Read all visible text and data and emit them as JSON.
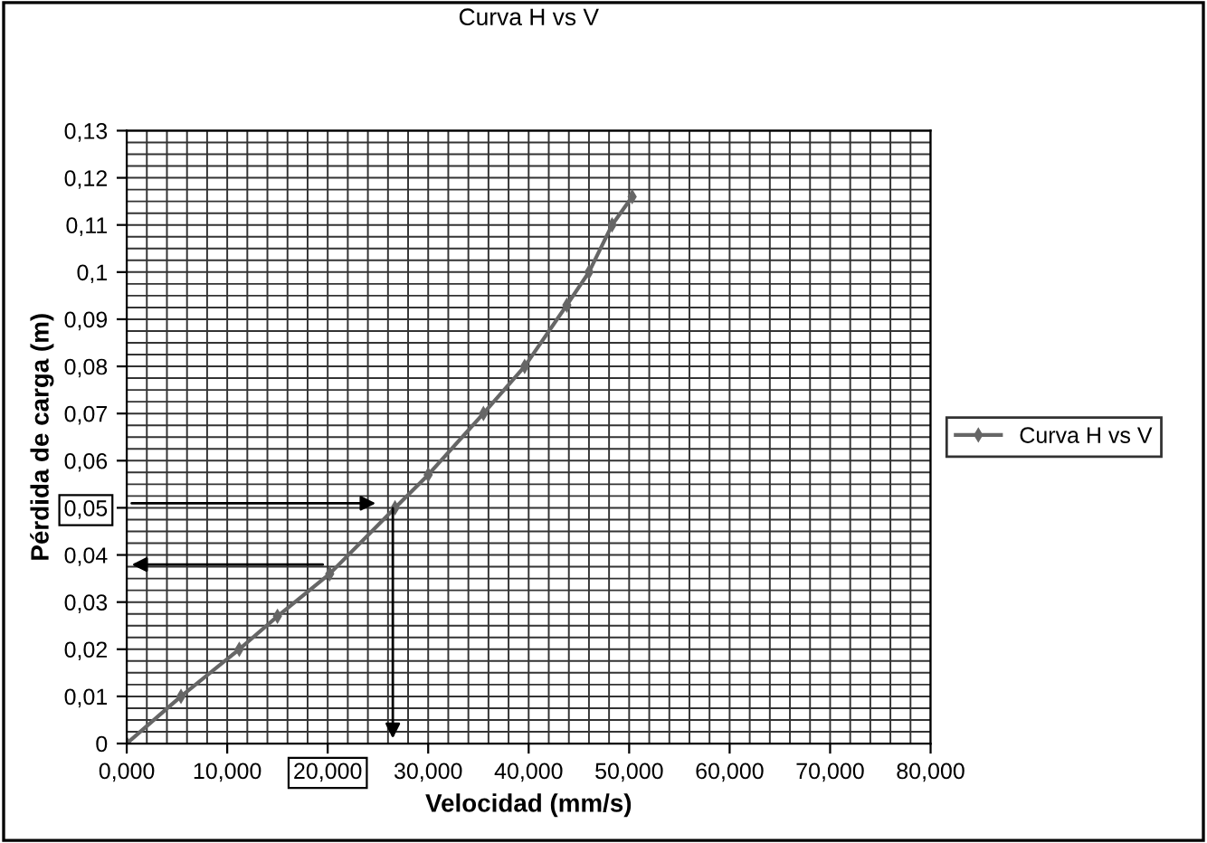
{
  "chart_data": {
    "type": "line",
    "title": "Curva H vs V",
    "xlabel": "Velocidad (mm/s)",
    "ylabel": "Pérdida de carga (m)",
    "x": [
      0,
      5.4,
      11.2,
      15,
      20.2,
      26.7,
      30,
      35.5,
      39.6,
      43.8,
      46,
      48.3,
      50.3
    ],
    "series": [
      {
        "name": "Curva H vs V",
        "color": "#666666",
        "values": [
          0,
          0.01,
          0.02,
          0.027,
          0.036,
          0.05,
          0.057,
          0.07,
          0.08,
          0.093,
          0.1,
          0.11,
          0.116
        ]
      }
    ],
    "xlim": [
      0,
      80
    ],
    "ylim": [
      0,
      0.13
    ],
    "xticks": [
      {
        "value": 0,
        "label": "0,000"
      },
      {
        "value": 10,
        "label": "10,000"
      },
      {
        "value": 20,
        "label": "20,000"
      },
      {
        "value": 30,
        "label": "30,000"
      },
      {
        "value": 40,
        "label": "40,000"
      },
      {
        "value": 50,
        "label": "50,000"
      },
      {
        "value": 60,
        "label": "60,000"
      },
      {
        "value": 70,
        "label": "70,000"
      },
      {
        "value": 80,
        "label": "80,000"
      }
    ],
    "yticks": [
      0,
      {
        "value": 0.01,
        "label": "0,01"
      },
      {
        "value": 0.02,
        "label": "0,02"
      },
      {
        "value": 0.03,
        "label": "0,03"
      },
      {
        "value": 0.04,
        "label": "0,04"
      },
      {
        "value": 0.05,
        "label": "0,05"
      },
      {
        "value": 0.06,
        "label": "0,06"
      },
      {
        "value": 0.07,
        "label": "0,07"
      },
      {
        "value": 0.08,
        "label": "0,08"
      },
      {
        "value": 0.09,
        "label": "0,09"
      },
      {
        "value": 0.1,
        "label": "0,1"
      },
      {
        "value": 0.11,
        "label": "0,11"
      },
      {
        "value": 0.12,
        "label": "0,12"
      },
      {
        "value": 0.13,
        "label": "0,13"
      }
    ],
    "grid": true,
    "legend": "right",
    "marker": "diamond",
    "line_style": "solid"
  }
}
